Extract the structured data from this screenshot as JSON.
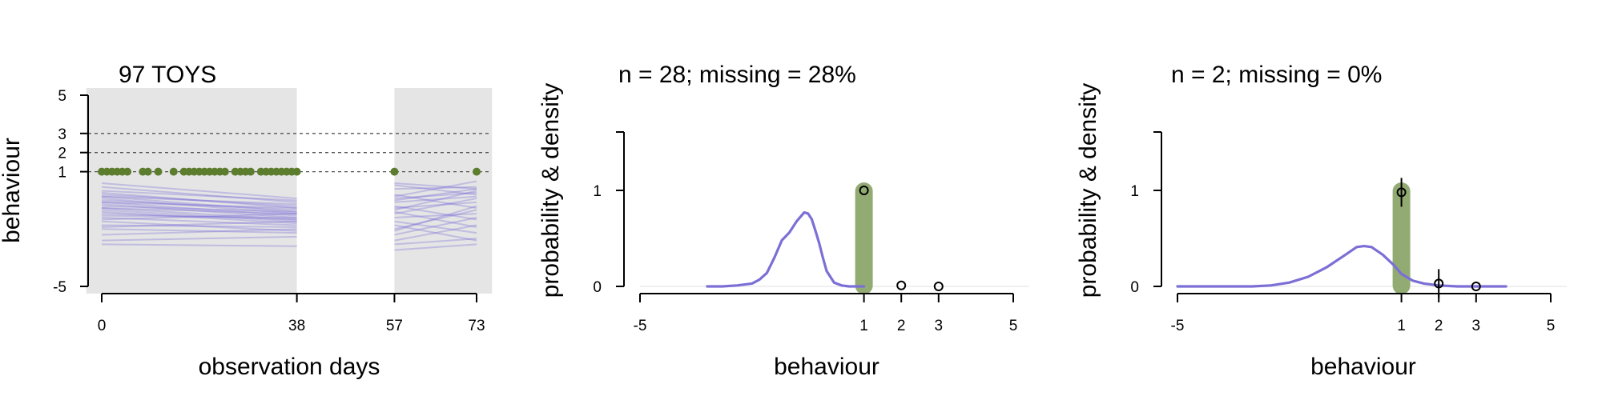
{
  "colors": {
    "panel_bg": "#e5e5e5",
    "line": "#7b6fd6",
    "green": "#5c7c2e",
    "green_bar": "#92ab73",
    "axis": "#000000",
    "ref_line": "#555555"
  },
  "chart_data": [
    {
      "type": "line",
      "title": "97 TOYS",
      "xlabel": "observation days",
      "ylabel": "behaviour",
      "x_ticks": [
        "0",
        "38",
        "57",
        "73"
      ],
      "y_ticks": [
        "5",
        "3",
        "2",
        "1",
        "-5"
      ],
      "xlim": [
        -3,
        76
      ],
      "ylim": [
        -5,
        5
      ],
      "shaded_periods": [
        [
          -3,
          38
        ],
        [
          57,
          76
        ]
      ],
      "reference_lines": [
        3,
        2,
        1
      ],
      "observed_points": {
        "y": 1,
        "x": [
          0,
          1,
          2,
          3,
          4,
          5,
          8,
          9,
          11,
          14,
          16,
          17,
          18,
          19,
          20,
          21,
          22,
          23,
          24,
          26,
          27,
          28,
          29,
          31,
          32,
          33,
          34,
          35,
          36,
          37,
          38,
          57,
          73
        ]
      },
      "trajectories_period1": [
        [
          -0.3,
          -1.1
        ],
        [
          0.2,
          -0.6
        ],
        [
          -0.7,
          -1.4
        ],
        [
          -1.0,
          -1.6
        ],
        [
          -0.5,
          -1.0
        ],
        [
          -1.4,
          -1.8
        ],
        [
          -1.8,
          -1.9
        ],
        [
          -0.2,
          -0.8
        ],
        [
          -0.9,
          -1.2
        ],
        [
          -1.2,
          -1.5
        ],
        [
          0.4,
          -0.4
        ],
        [
          -0.6,
          -1.3
        ],
        [
          -1.6,
          -2.1
        ],
        [
          -0.1,
          -0.9
        ],
        [
          -0.8,
          -1.1
        ],
        [
          -2.0,
          -2.2
        ],
        [
          -0.4,
          -1.2
        ],
        [
          -1.1,
          -1.7
        ],
        [
          -0.6,
          -0.9
        ],
        [
          -2.3,
          -2.0
        ],
        [
          -0.3,
          -0.7
        ],
        [
          -1.3,
          -1.4
        ],
        [
          -2.6,
          -2.4
        ],
        [
          -0.9,
          -1.5
        ],
        [
          -1.5,
          -1.2
        ],
        [
          0.0,
          -0.5
        ],
        [
          -1.9,
          -1.6
        ],
        [
          -2.8,
          -2.9
        ]
      ],
      "trajectories_period2": [
        [
          0.1,
          0.2
        ],
        [
          -0.3,
          0.5
        ],
        [
          -0.8,
          -1.5
        ],
        [
          -1.2,
          -0.4
        ],
        [
          0.3,
          -0.2
        ],
        [
          -2.0,
          -1.0
        ],
        [
          -0.5,
          0.1
        ],
        [
          -1.6,
          -2.2
        ],
        [
          -2.6,
          -1.8
        ],
        [
          -0.2,
          -0.9
        ],
        [
          -1.0,
          0.0
        ],
        [
          -1.8,
          -2.6
        ],
        [
          -0.6,
          -0.3
        ],
        [
          -2.3,
          -1.4
        ],
        [
          -1.4,
          -1.2
        ],
        [
          -2.8,
          -2.5
        ],
        [
          -0.9,
          -0.6
        ],
        [
          0.4,
          0.1
        ],
        [
          -3.1,
          -2.8
        ],
        [
          -1.1,
          -1.9
        ],
        [
          -0.4,
          -0.1
        ],
        [
          -2.1,
          -0.8
        ]
      ]
    },
    {
      "type": "line",
      "title": "n = 28; missing = 28%",
      "xlabel": "behaviour",
      "ylabel": "probability & density",
      "x_ticks": [
        "-5",
        "1",
        "2",
        "3",
        "5"
      ],
      "y_ticks": [
        "0",
        "1"
      ],
      "xlim": [
        -5,
        5
      ],
      "ylim": [
        0,
        1.6
      ],
      "density": {
        "x": [
          -3.2,
          -2.8,
          -2.4,
          -2.0,
          -1.8,
          -1.6,
          -1.4,
          -1.2,
          -1.0,
          -0.8,
          -0.6,
          -0.5,
          -0.4,
          -0.3,
          -0.2,
          -0.1,
          0.0,
          0.2,
          0.4,
          0.6,
          0.8,
          1.0
        ],
        "y": [
          0.0,
          0.0,
          0.01,
          0.03,
          0.07,
          0.14,
          0.3,
          0.48,
          0.56,
          0.68,
          0.77,
          0.76,
          0.7,
          0.58,
          0.45,
          0.3,
          0.16,
          0.04,
          0.01,
          0.0,
          0.0,
          0.0
        ]
      },
      "probability_bar": {
        "x": 1,
        "value": 1.0
      },
      "observed": [
        {
          "x": 1,
          "y": 1.0,
          "err": 0.0
        },
        {
          "x": 2,
          "y": 0.01,
          "err": 0.0
        },
        {
          "x": 3,
          "y": 0.0,
          "err": 0.0
        }
      ]
    },
    {
      "type": "line",
      "title": "n = 2; missing = 0%",
      "xlabel": "behaviour",
      "ylabel": "probability & density",
      "x_ticks": [
        "-5",
        "1",
        "2",
        "3",
        "5"
      ],
      "y_ticks": [
        "0",
        "1"
      ],
      "xlim": [
        -5,
        5
      ],
      "ylim": [
        0,
        1.6
      ],
      "density": {
        "x": [
          -5.0,
          -4.0,
          -3.0,
          -2.5,
          -2.0,
          -1.5,
          -1.0,
          -0.5,
          -0.2,
          0.0,
          0.2,
          0.5,
          0.8,
          1.0,
          1.3,
          1.6,
          2.0,
          2.5,
          3.0,
          3.5,
          3.8
        ],
        "y": [
          0.0,
          0.0,
          0.0,
          0.01,
          0.04,
          0.1,
          0.2,
          0.33,
          0.41,
          0.42,
          0.41,
          0.33,
          0.22,
          0.13,
          0.06,
          0.03,
          0.01,
          0.0,
          0.0,
          0.0,
          0.0
        ]
      },
      "probability_bar": {
        "x": 1,
        "value": 1.0
      },
      "observed": [
        {
          "x": 1,
          "y": 0.98,
          "err": 0.15
        },
        {
          "x": 2,
          "y": 0.03,
          "err": 0.15
        },
        {
          "x": 3,
          "y": 0.0,
          "err": 0.0
        }
      ]
    }
  ]
}
